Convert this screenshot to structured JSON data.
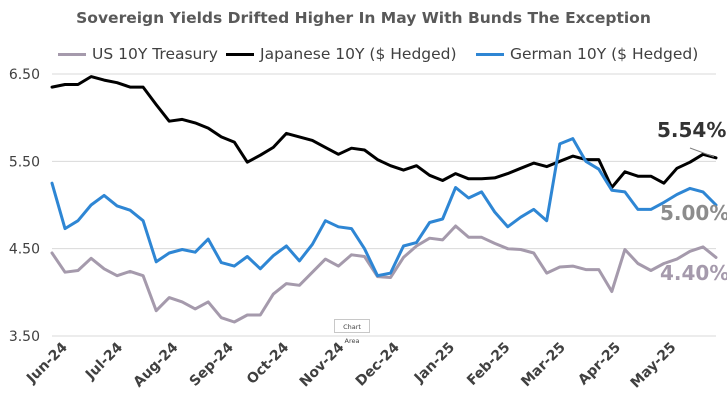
{
  "chart_data": {
    "type": "line",
    "title": "Sovereign Yields Drifted Higher In May With Bunds The Exception",
    "xlabel": "",
    "ylabel": "",
    "ylim": [
      3.5,
      6.5
    ],
    "y_ticks": [
      "6.50",
      "5.50",
      "4.50",
      "3.50"
    ],
    "x_ticks": [
      "Jun-24",
      "Jul-24",
      "Aug-24",
      "Sep-24",
      "Oct-24",
      "Nov-24",
      "Dec-24",
      "Jan-25",
      "Feb-25",
      "Mar-25",
      "Apr-25",
      "May-25"
    ],
    "grid": "horizontal",
    "legend_position": "top",
    "series": [
      {
        "name": "US 10Y Treasury",
        "color": "#a59aac",
        "end_label": "4.40%",
        "values": [
          4.45,
          4.23,
          4.25,
          4.39,
          4.27,
          4.19,
          4.24,
          4.19,
          3.79,
          3.94,
          3.89,
          3.81,
          3.89,
          3.71,
          3.66,
          3.74,
          3.74,
          3.98,
          4.1,
          4.08,
          4.23,
          4.38,
          4.3,
          4.43,
          4.41,
          4.18,
          4.17,
          4.4,
          4.53,
          4.62,
          4.6,
          4.76,
          4.63,
          4.63,
          4.56,
          4.5,
          4.49,
          4.45,
          4.22,
          4.29,
          4.3,
          4.26,
          4.26,
          4.01,
          4.49,
          4.33,
          4.25,
          4.33,
          4.38,
          4.47,
          4.52,
          4.4
        ]
      },
      {
        "name": "Japanese 10Y ($ Hedged)",
        "color": "#000000",
        "end_label": "5.54%",
        "values": [
          6.35,
          6.38,
          6.38,
          6.47,
          6.43,
          6.4,
          6.35,
          6.35,
          6.15,
          5.96,
          5.98,
          5.94,
          5.88,
          5.78,
          5.72,
          5.49,
          5.57,
          5.66,
          5.82,
          5.78,
          5.74,
          5.66,
          5.58,
          5.65,
          5.63,
          5.52,
          5.45,
          5.4,
          5.45,
          5.34,
          5.28,
          5.36,
          5.3,
          5.3,
          5.31,
          5.36,
          5.42,
          5.48,
          5.44,
          5.5,
          5.56,
          5.52,
          5.52,
          5.2,
          5.38,
          5.33,
          5.33,
          5.25,
          5.42,
          5.49,
          5.58,
          5.54
        ]
      },
      {
        "name": "German 10Y ($ Hedged)",
        "color": "#2e86d4",
        "end_label": "5.00%",
        "values": [
          5.25,
          4.73,
          4.82,
          5.0,
          5.11,
          4.99,
          4.94,
          4.82,
          4.35,
          4.45,
          4.49,
          4.46,
          4.61,
          4.34,
          4.3,
          4.41,
          4.27,
          4.42,
          4.53,
          4.36,
          4.55,
          4.82,
          4.75,
          4.73,
          4.5,
          4.19,
          4.22,
          4.53,
          4.57,
          4.8,
          4.84,
          5.2,
          5.08,
          5.15,
          4.92,
          4.75,
          4.86,
          4.95,
          4.82,
          5.7,
          5.76,
          5.5,
          5.41,
          5.17,
          5.15,
          4.95,
          4.95,
          5.03,
          5.12,
          5.19,
          5.15,
          5.0
        ]
      }
    ]
  },
  "annotation": {
    "hover_label": "Chart Area"
  }
}
